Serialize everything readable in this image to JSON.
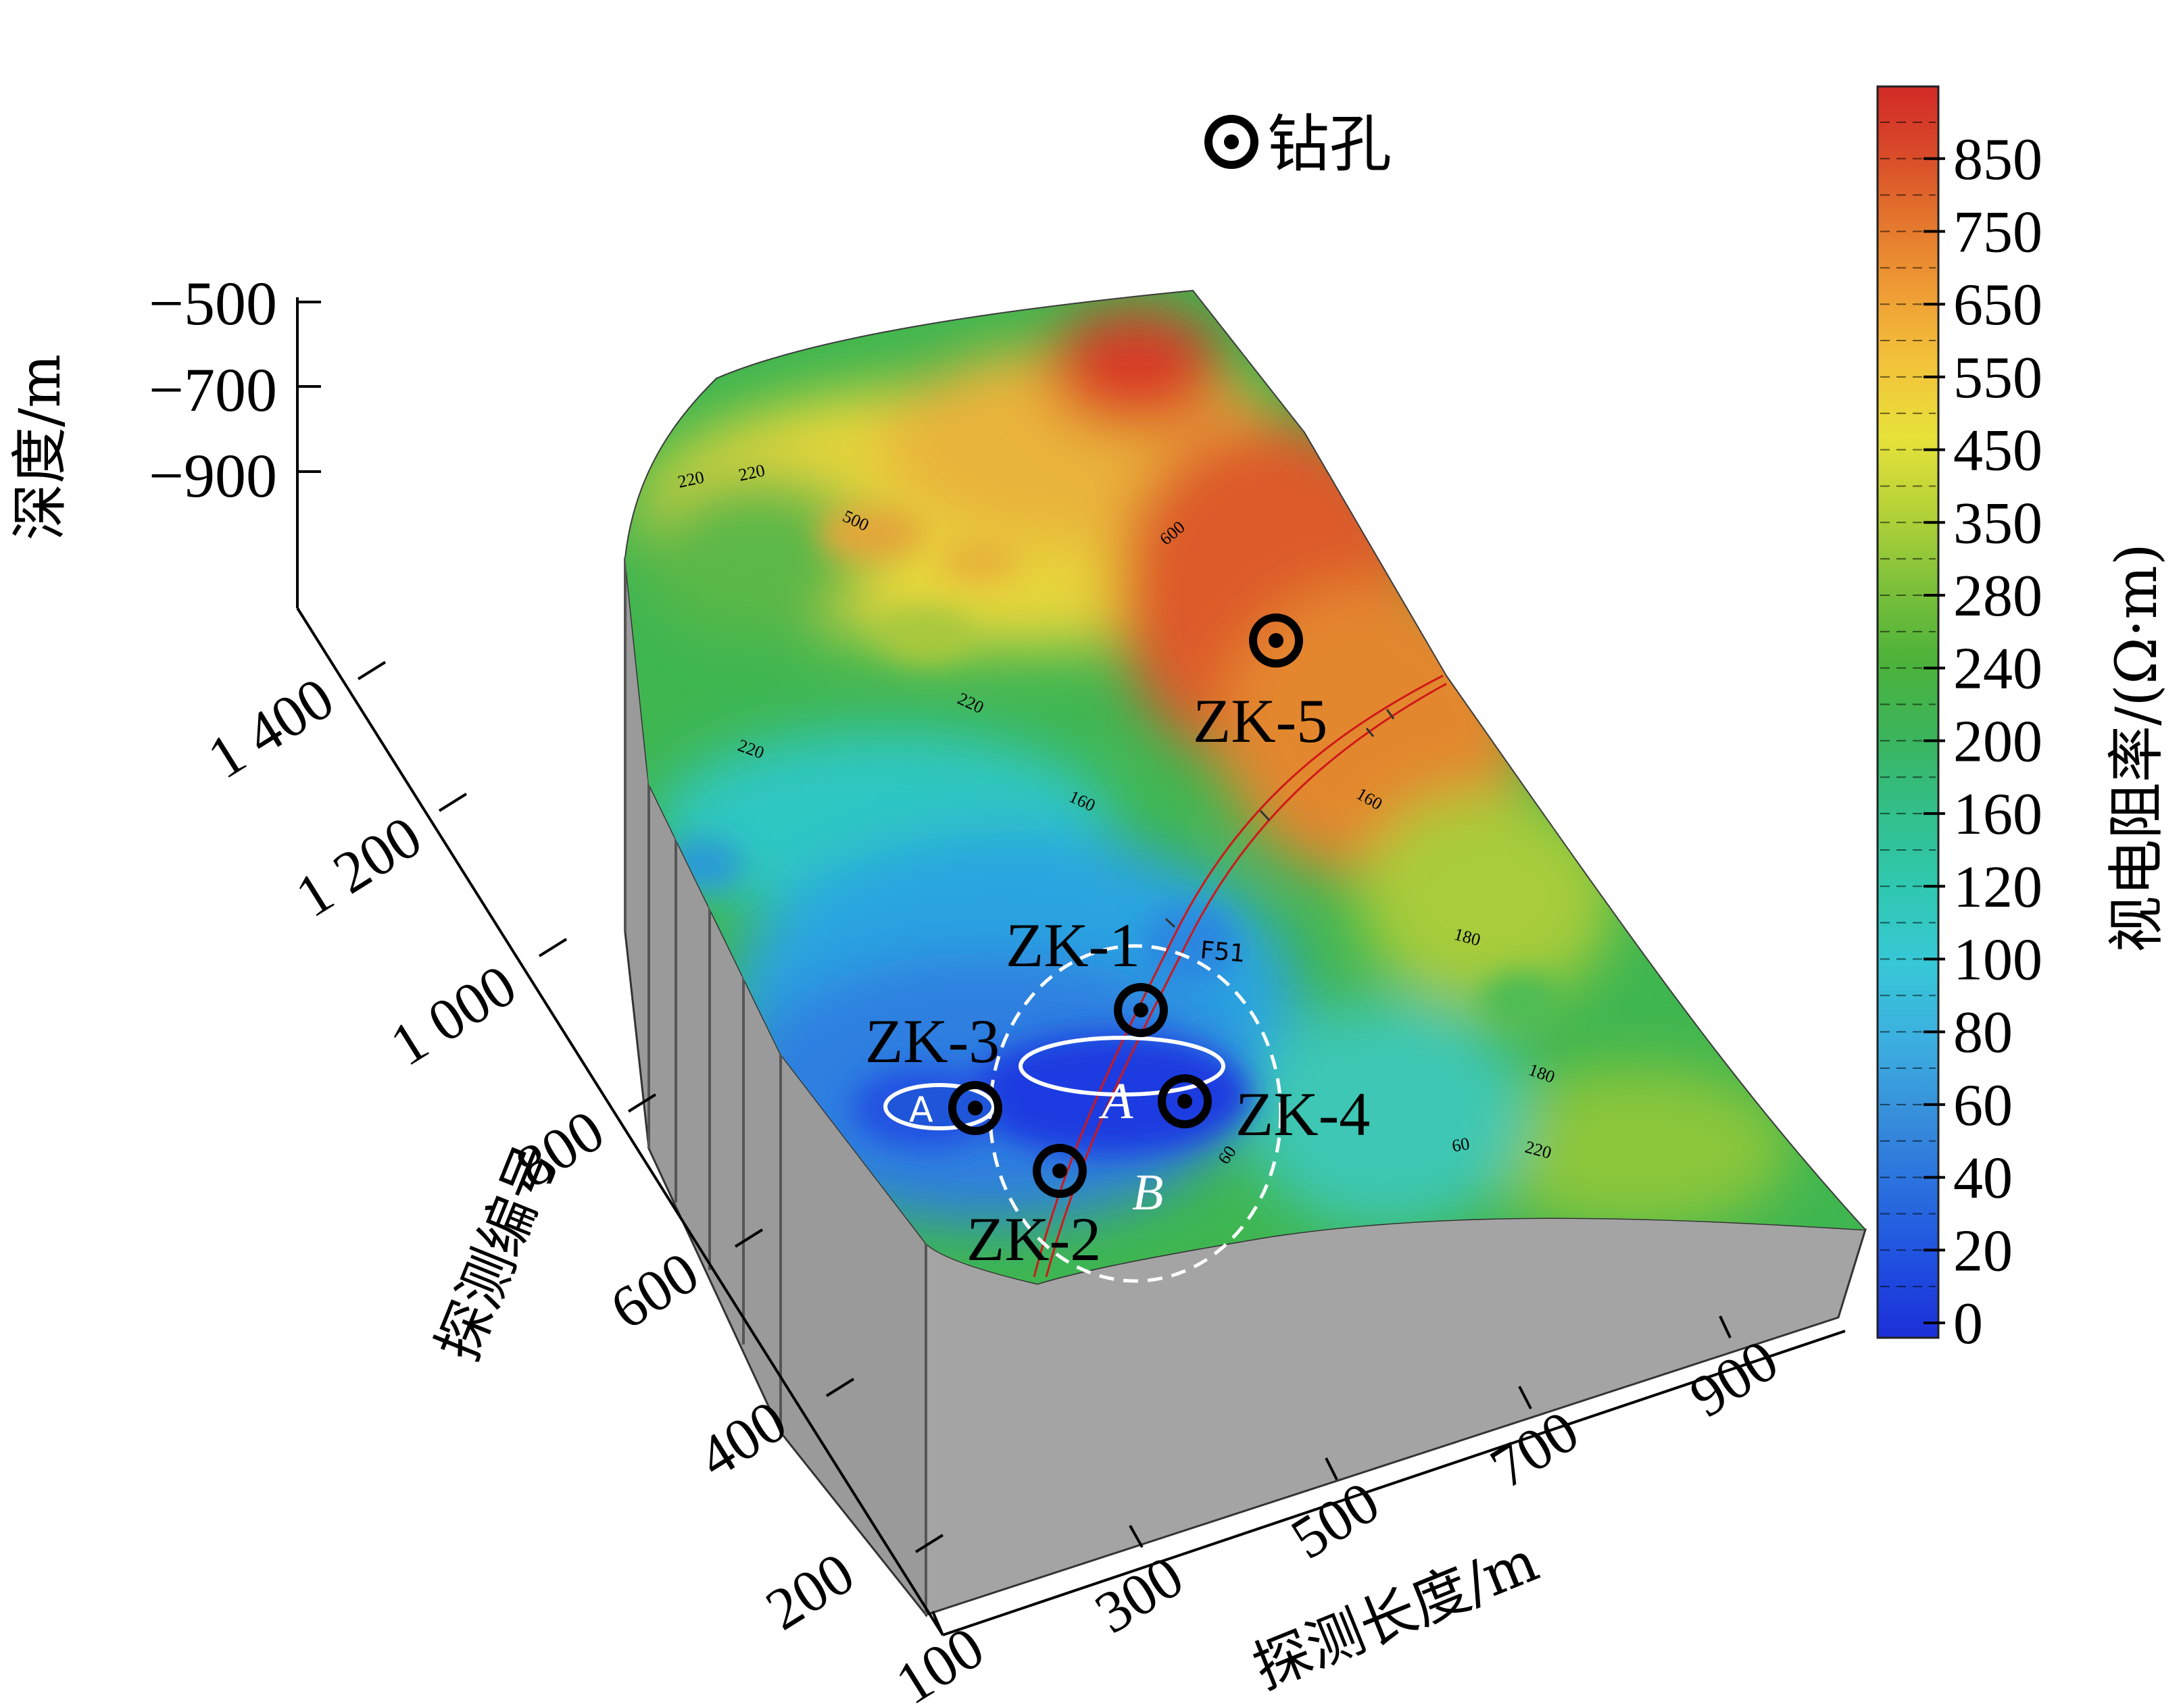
{
  "legend": {
    "symbol_name": "drill-hole-icon",
    "label": "钻孔"
  },
  "axes": {
    "depth_label": "深度/m",
    "depth_ticks": [
      "−500",
      "−700",
      "−900"
    ],
    "line_label": "探测编号",
    "line_ticks": [
      "200",
      "400",
      "600",
      "800",
      "1 000",
      "1 200",
      "1 400"
    ],
    "length_label": "探测长度/m",
    "length_ticks": [
      "100",
      "300",
      "500",
      "700",
      "900"
    ]
  },
  "colorbar": {
    "label": "视电阻率/(Ω·m)",
    "ticks": [
      "0",
      "20",
      "40",
      "60",
      "80",
      "100",
      "120",
      "160",
      "200",
      "240",
      "280",
      "350",
      "450",
      "550",
      "650",
      "750",
      "850"
    ],
    "colors": [
      "#1c2fd8",
      "#1f4fe0",
      "#2a70de",
      "#3790da",
      "#3cb0e0",
      "#37c8d6",
      "#2fc8b0",
      "#32bf8a",
      "#3bb45c",
      "#4cb23a",
      "#7cc03a",
      "#b4d238",
      "#e7e23a",
      "#f3c23a",
      "#ee9a34",
      "#e2702c",
      "#d8482a",
      "#d22a26"
    ]
  },
  "drill_holes": [
    "ZK-1",
    "ZK-2",
    "ZK-3",
    "ZK-4",
    "ZK-5"
  ],
  "zone_labels": {
    "a_small": "A",
    "a_large": "A",
    "b": "B"
  },
  "fault_label": "F51",
  "contour_labels": [
    "220",
    "220",
    "500",
    "600",
    "220",
    "220",
    "160",
    "160",
    "180",
    "60",
    "180",
    "220",
    "60"
  ],
  "chart_data": {
    "type": "heatmap",
    "title": "",
    "xlabel": "探测长度/m",
    "ylabel": "探测编号",
    "zlabel": "深度/m",
    "x_ticks": [
      100,
      300,
      500,
      700,
      900
    ],
    "y_ticks": [
      200,
      400,
      600,
      800,
      1000,
      1200,
      1400
    ],
    "z_ticks": [
      -500,
      -700,
      -900
    ],
    "colorbar_label": "视电阻率/(Ω·m)",
    "colorbar_ticks": [
      0,
      20,
      40,
      60,
      80,
      100,
      120,
      160,
      200,
      240,
      280,
      350,
      450,
      550,
      650,
      750,
      850
    ],
    "annotations": [
      "ZK-1",
      "ZK-2",
      "ZK-3",
      "ZK-4",
      "ZK-5",
      "A",
      "A",
      "B",
      "F51"
    ],
    "legend": [
      "钻孔"
    ],
    "legend_position": "top"
  }
}
